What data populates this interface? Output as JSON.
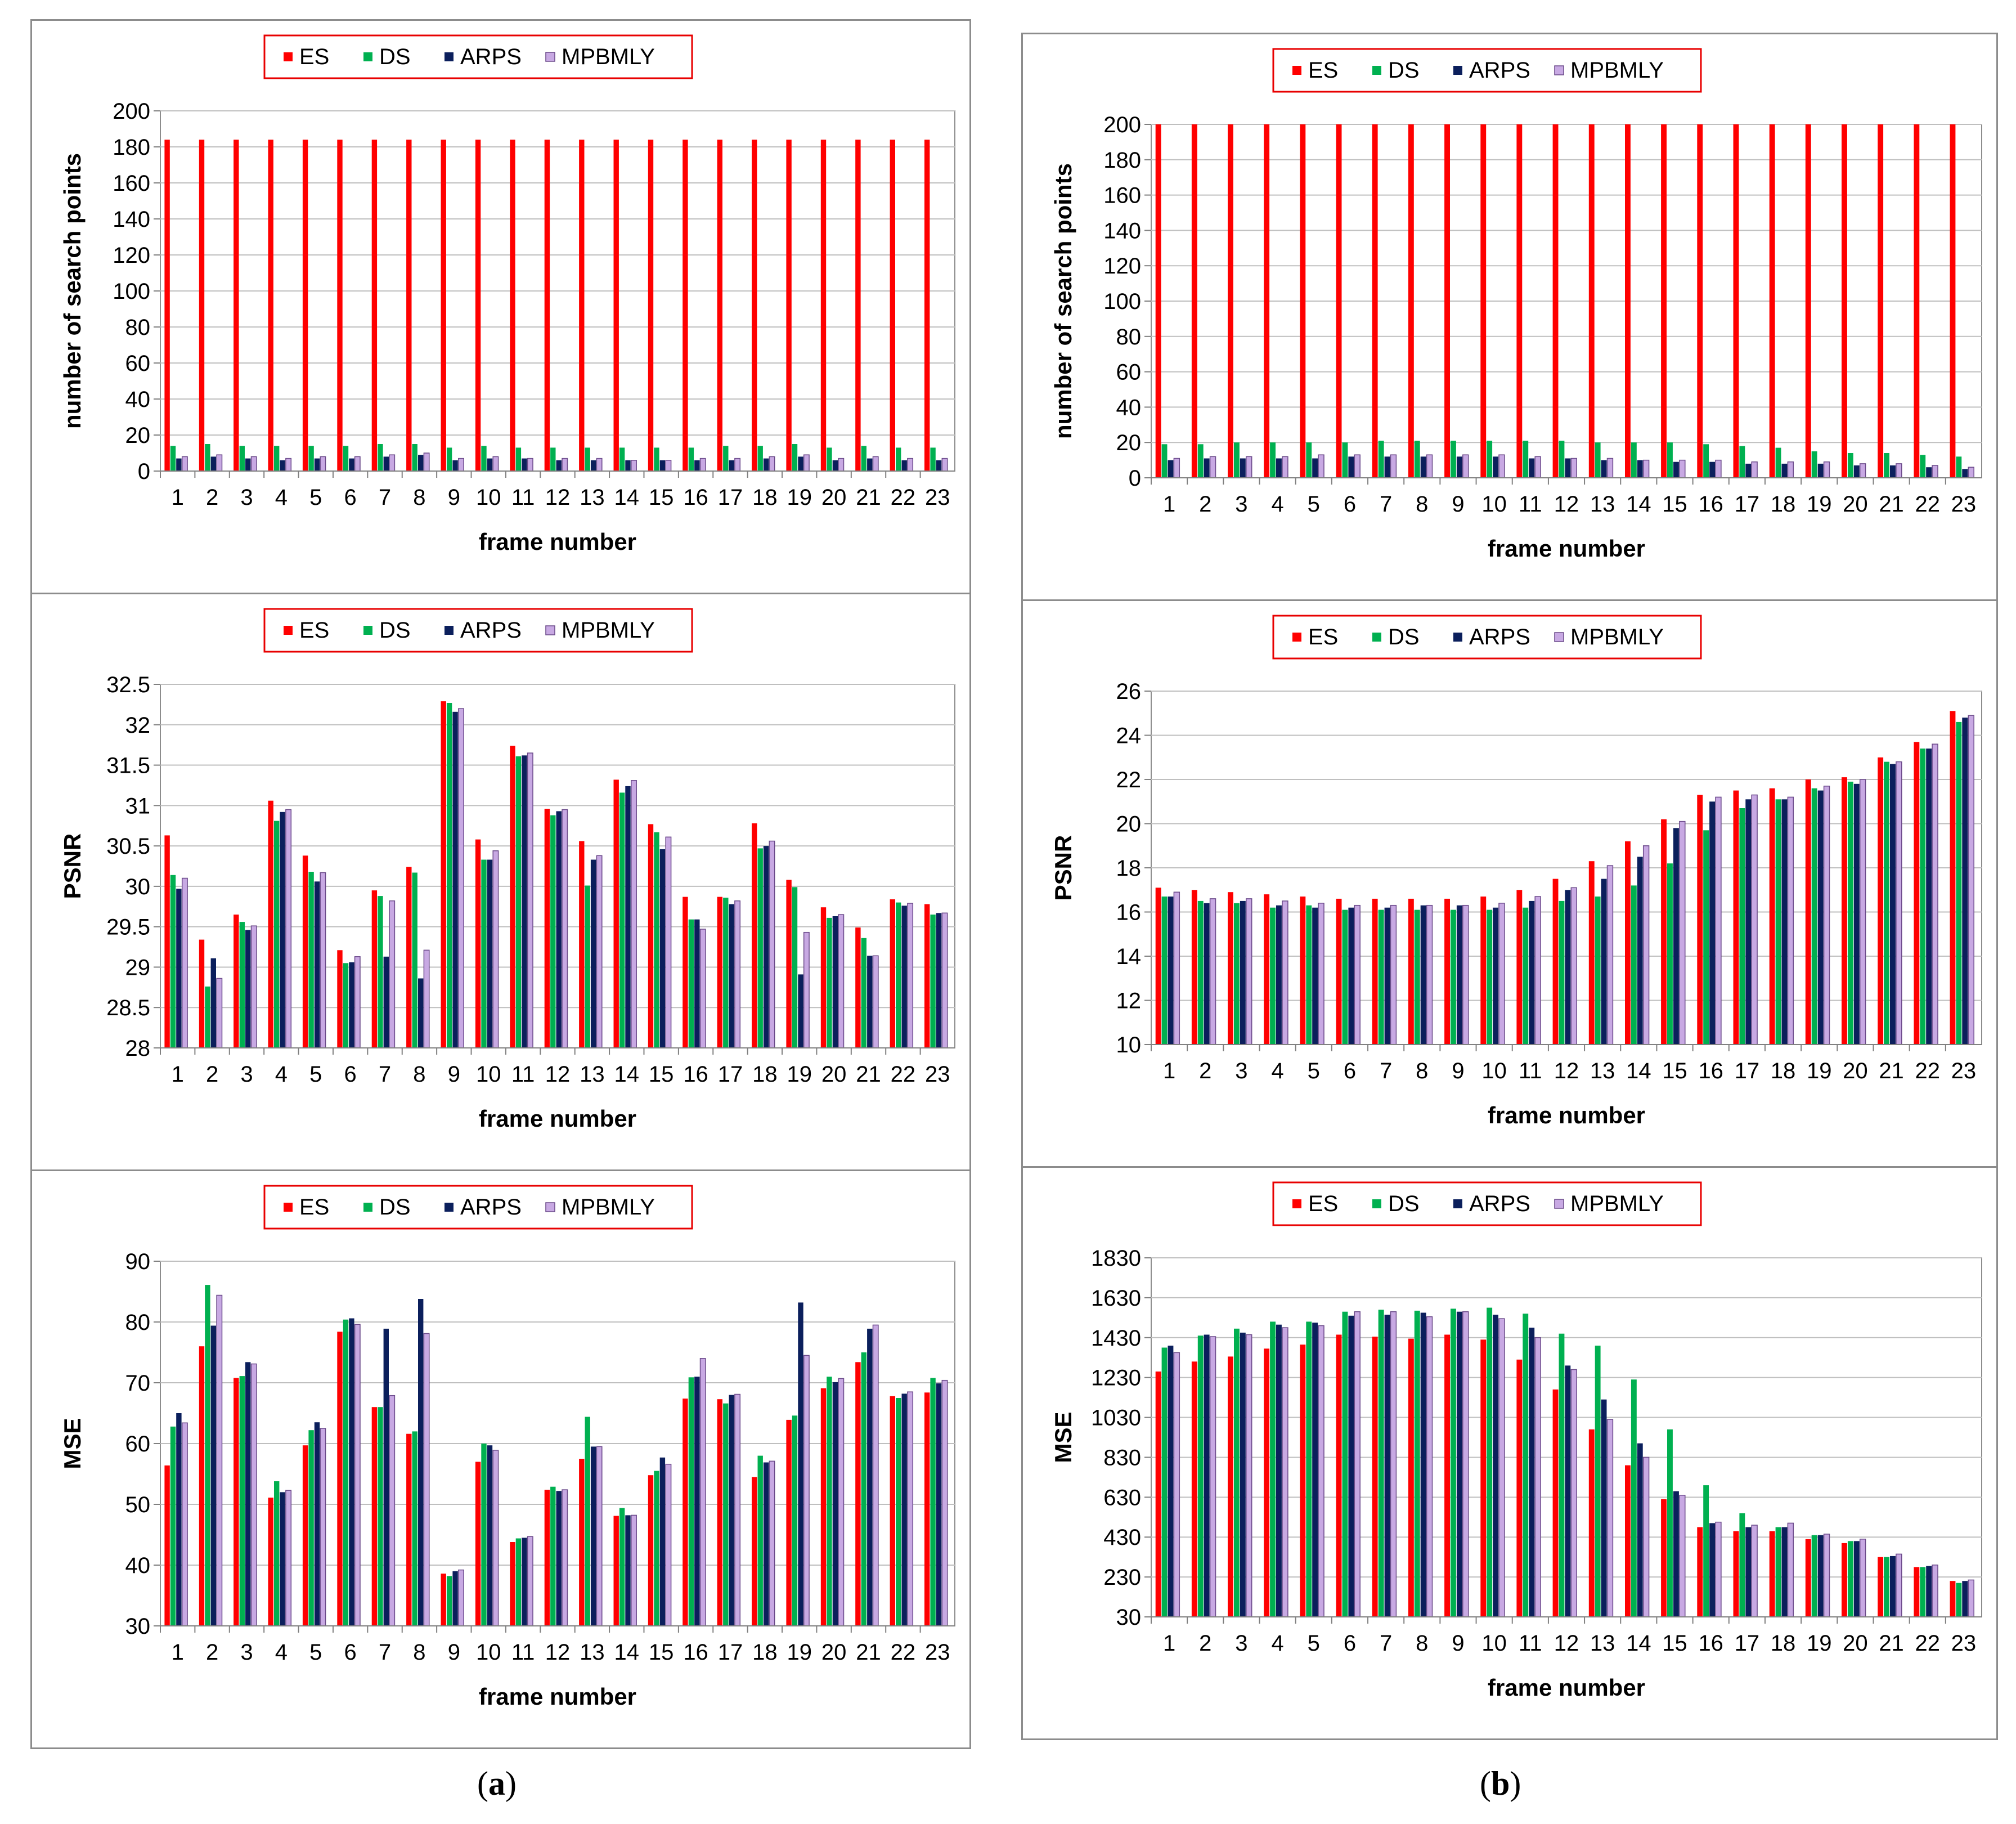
{
  "colors": {
    "ES": "#ff0000",
    "DS": "#00b050",
    "ARPS": "#0b1f5c",
    "MPBMLY": "#c8a9e3",
    "legend_border": "#e80000",
    "grid": "#bfbfbf"
  },
  "captions": {
    "a": {
      "open": "(",
      "letter": "a",
      "close": ")"
    },
    "b": {
      "open": "(",
      "letter": "b",
      "close": ")"
    }
  },
  "chart_data": [
    {
      "type": "bar",
      "column": "a",
      "title": "",
      "ylabel": "number of search points",
      "xlabel": "frame number",
      "ylim": [
        0,
        200
      ],
      "yticks": [
        "0",
        "20",
        "40",
        "60",
        "80",
        "100",
        "120",
        "140",
        "160",
        "180",
        "200"
      ],
      "categories": [
        "1",
        "2",
        "3",
        "4",
        "5",
        "6",
        "7",
        "8",
        "9",
        "10",
        "11",
        "12",
        "13",
        "14",
        "15",
        "16",
        "17",
        "18",
        "19",
        "20",
        "21",
        "22",
        "23"
      ],
      "legend": [
        "ES",
        "DS",
        "ARPS",
        "MPBMLY"
      ],
      "series": [
        {
          "name": "ES",
          "values": [
            184,
            184,
            184,
            184,
            184,
            184,
            184,
            184,
            184,
            184,
            184,
            184,
            184,
            184,
            184,
            184,
            184,
            184,
            184,
            184,
            184,
            184,
            184
          ]
        },
        {
          "name": "DS",
          "values": [
            14,
            15,
            14,
            14,
            14,
            14,
            15,
            15,
            13,
            14,
            13,
            13,
            13,
            13,
            13,
            13,
            14,
            14,
            15,
            13,
            14,
            13,
            13
          ]
        },
        {
          "name": "ARPS",
          "values": [
            7,
            8,
            7,
            6,
            7,
            7,
            8,
            9,
            6,
            7,
            7,
            6,
            6,
            6,
            6,
            6,
            6,
            7,
            8,
            6,
            7,
            6,
            6
          ]
        },
        {
          "name": "MPBMLY",
          "values": [
            8,
            9,
            8,
            7,
            8,
            8,
            9,
            10,
            7,
            8,
            7,
            7,
            7,
            6,
            6,
            7,
            7,
            8,
            9,
            7,
            8,
            7,
            7
          ]
        }
      ]
    },
    {
      "type": "bar",
      "column": "b",
      "title": "",
      "ylabel": "number of search points",
      "xlabel": "frame number",
      "ylim": [
        0,
        200
      ],
      "yticks": [
        "0",
        "20",
        "40",
        "60",
        "80",
        "100",
        "120",
        "140",
        "160",
        "180",
        "200"
      ],
      "categories": [
        "1",
        "2",
        "3",
        "4",
        "5",
        "6",
        "7",
        "8",
        "9",
        "10",
        "11",
        "12",
        "13",
        "14",
        "15",
        "16",
        "17",
        "18",
        "19",
        "20",
        "21",
        "22",
        "23"
      ],
      "legend": [
        "ES",
        "DS",
        "ARPS",
        "MPBMLY"
      ],
      "series": [
        {
          "name": "ES",
          "values": [
            200,
            200,
            200,
            200,
            200,
            200,
            200,
            200,
            200,
            200,
            200,
            200,
            200,
            200,
            200,
            200,
            200,
            200,
            200,
            200,
            200,
            200,
            200
          ]
        },
        {
          "name": "DS",
          "values": [
            19,
            19,
            20,
            20,
            20,
            20,
            21,
            21,
            21,
            21,
            21,
            21,
            20,
            20,
            20,
            19,
            18,
            17,
            15,
            14,
            14,
            13,
            12
          ]
        },
        {
          "name": "ARPS",
          "values": [
            10,
            11,
            11,
            11,
            11,
            12,
            12,
            12,
            12,
            12,
            11,
            11,
            10,
            10,
            9,
            9,
            8,
            8,
            8,
            7,
            7,
            6,
            5
          ]
        },
        {
          "name": "MPBMLY",
          "values": [
            11,
            12,
            12,
            12,
            13,
            13,
            13,
            13,
            13,
            13,
            12,
            11,
            11,
            10,
            10,
            10,
            9,
            9,
            9,
            8,
            8,
            7,
            6
          ]
        }
      ]
    },
    {
      "type": "bar",
      "column": "a",
      "title": "",
      "ylabel": "PSNR",
      "xlabel": "frame number",
      "ylim": [
        28,
        32.5
      ],
      "yticks": [
        "28",
        "28.5",
        "29",
        "29.5",
        "30",
        "30.5",
        "31",
        "31.5",
        "32",
        "32.5"
      ],
      "categories": [
        "1",
        "2",
        "3",
        "4",
        "5",
        "6",
        "7",
        "8",
        "9",
        "10",
        "11",
        "12",
        "13",
        "14",
        "15",
        "16",
        "17",
        "18",
        "19",
        "20",
        "21",
        "22",
        "23"
      ],
      "legend": [
        "ES",
        "DS",
        "ARPS",
        "MPBMLY"
      ],
      "series": [
        {
          "name": "ES",
          "values": [
            30.63,
            29.34,
            29.65,
            31.06,
            30.38,
            29.21,
            29.95,
            30.24,
            32.29,
            30.58,
            31.74,
            30.96,
            30.56,
            31.32,
            30.77,
            29.87,
            29.87,
            30.78,
            30.08,
            29.74,
            29.49,
            29.84,
            29.78
          ]
        },
        {
          "name": "DS",
          "values": [
            30.14,
            28.76,
            29.56,
            30.81,
            30.18,
            29.05,
            29.88,
            30.17,
            32.27,
            30.33,
            31.61,
            30.88,
            30.01,
            31.16,
            30.67,
            29.59,
            29.86,
            30.47,
            29.99,
            29.61,
            29.36,
            29.8,
            29.65
          ]
        },
        {
          "name": "ARPS",
          "values": [
            29.97,
            29.11,
            29.46,
            30.92,
            30.06,
            29.06,
            29.13,
            28.86,
            32.16,
            30.33,
            31.62,
            30.93,
            30.33,
            31.24,
            30.46,
            29.59,
            29.78,
            30.5,
            28.91,
            29.63,
            29.14,
            29.76,
            29.67
          ]
        },
        {
          "name": "MPBMLY",
          "values": [
            30.1,
            28.86,
            29.51,
            30.95,
            30.17,
            29.13,
            29.82,
            29.21,
            32.2,
            30.44,
            31.65,
            30.95,
            30.38,
            31.31,
            30.61,
            29.47,
            29.82,
            30.56,
            29.43,
            29.65,
            29.14,
            29.79,
            29.67
          ]
        }
      ]
    },
    {
      "type": "bar",
      "column": "b",
      "title": "",
      "ylabel": "PSNR",
      "xlabel": "frame number",
      "ylim": [
        10,
        26
      ],
      "yticks": [
        "10",
        "12",
        "14",
        "16",
        "18",
        "20",
        "22",
        "24",
        "26"
      ],
      "categories": [
        "1",
        "2",
        "3",
        "4",
        "5",
        "6",
        "7",
        "8",
        "9",
        "10",
        "11",
        "12",
        "13",
        "14",
        "15",
        "16",
        "17",
        "18",
        "19",
        "20",
        "21",
        "22",
        "23"
      ],
      "legend": [
        "ES",
        "DS",
        "ARPS",
        "MPBMLY"
      ],
      "series": [
        {
          "name": "ES",
          "values": [
            17.1,
            17.0,
            16.9,
            16.8,
            16.7,
            16.6,
            16.6,
            16.6,
            16.6,
            16.7,
            17.0,
            17.5,
            18.3,
            19.2,
            20.2,
            21.3,
            21.5,
            21.6,
            22.0,
            22.1,
            23.0,
            23.7,
            25.1
          ]
        },
        {
          "name": "DS",
          "values": [
            16.7,
            16.5,
            16.4,
            16.2,
            16.3,
            16.1,
            16.1,
            16.1,
            16.1,
            16.1,
            16.2,
            16.5,
            16.7,
            17.2,
            18.2,
            19.7,
            20.7,
            21.1,
            21.6,
            21.9,
            22.8,
            23.4,
            24.6
          ]
        },
        {
          "name": "ARPS",
          "values": [
            16.7,
            16.4,
            16.5,
            16.3,
            16.2,
            16.2,
            16.2,
            16.3,
            16.3,
            16.2,
            16.5,
            17.0,
            17.5,
            18.5,
            19.8,
            21.0,
            21.1,
            21.1,
            21.5,
            21.8,
            22.7,
            23.4,
            24.8
          ]
        },
        {
          "name": "MPBMLY",
          "values": [
            16.9,
            16.6,
            16.6,
            16.5,
            16.4,
            16.3,
            16.3,
            16.3,
            16.3,
            16.4,
            16.7,
            17.1,
            18.1,
            19.0,
            20.1,
            21.2,
            21.3,
            21.2,
            21.7,
            22.0,
            22.8,
            23.6,
            24.9
          ]
        }
      ]
    },
    {
      "type": "bar",
      "column": "a",
      "title": "",
      "ylabel": "MSE",
      "xlabel": "frame number",
      "ylim": [
        30,
        90
      ],
      "yticks": [
        "30",
        "40",
        "50",
        "60",
        "70",
        "80",
        "90"
      ],
      "categories": [
        "1",
        "2",
        "3",
        "4",
        "5",
        "6",
        "7",
        "8",
        "9",
        "10",
        "11",
        "12",
        "13",
        "14",
        "15",
        "16",
        "17",
        "18",
        "19",
        "20",
        "21",
        "22",
        "23"
      ],
      "legend": [
        "ES",
        "DS",
        "ARPS",
        "MPBMLY"
      ],
      "series": [
        {
          "name": "ES",
          "values": [
            56.4,
            76.0,
            70.8,
            51.1,
            59.7,
            78.4,
            66.0,
            61.6,
            38.6,
            57.0,
            43.8,
            52.4,
            57.5,
            48.1,
            54.8,
            67.4,
            67.3,
            54.5,
            63.9,
            69.1,
            73.4,
            67.8,
            68.4
          ]
        },
        {
          "name": "DS",
          "values": [
            62.8,
            86.1,
            71.1,
            53.8,
            62.2,
            80.4,
            66.0,
            62.0,
            38.2,
            60.0,
            44.4,
            52.9,
            64.4,
            49.4,
            55.5,
            70.9,
            66.6,
            58.0,
            64.6,
            71.0,
            75.0,
            67.5,
            70.8
          ]
        },
        {
          "name": "ARPS",
          "values": [
            65.0,
            79.4,
            73.4,
            52.0,
            63.5,
            80.6,
            78.9,
            83.8,
            39.0,
            59.7,
            44.5,
            52.2,
            59.5,
            48.2,
            57.7,
            71.0,
            68.0,
            56.9,
            83.2,
            70.1,
            78.9,
            68.2,
            69.9
          ]
        },
        {
          "name": "MPBMLY",
          "values": [
            63.4,
            84.4,
            73.1,
            52.3,
            62.5,
            79.6,
            67.9,
            78.1,
            39.2,
            58.9,
            44.7,
            52.4,
            59.5,
            48.2,
            56.6,
            74.0,
            68.1,
            57.1,
            74.5,
            70.7,
            79.5,
            68.5,
            70.4
          ]
        }
      ]
    },
    {
      "type": "bar",
      "column": "b",
      "title": "",
      "ylabel": "MSE",
      "xlabel": "frame number",
      "ylim": [
        30,
        1830
      ],
      "yticks": [
        "30",
        "230",
        "430",
        "630",
        "830",
        "1030",
        "1230",
        "1430",
        "1630",
        "1830"
      ],
      "categories": [
        "1",
        "2",
        "3",
        "4",
        "5",
        "6",
        "7",
        "8",
        "9",
        "10",
        "11",
        "12",
        "13",
        "14",
        "15",
        "16",
        "17",
        "18",
        "19",
        "20",
        "21",
        "22",
        "23"
      ],
      "legend": [
        "ES",
        "DS",
        "ARPS",
        "MPBMLY"
      ],
      "series": [
        {
          "name": "ES",
          "values": [
            1260,
            1310,
            1335,
            1375,
            1395,
            1445,
            1435,
            1425,
            1445,
            1420,
            1320,
            1170,
            970,
            790,
            620,
            480,
            460,
            460,
            420,
            400,
            330,
            280,
            210
          ]
        },
        {
          "name": "DS",
          "values": [
            1380,
            1440,
            1475,
            1510,
            1510,
            1560,
            1570,
            1565,
            1575,
            1580,
            1550,
            1450,
            1390,
            1220,
            970,
            690,
            550,
            480,
            440,
            410,
            330,
            280,
            200
          ]
        },
        {
          "name": "ARPS",
          "values": [
            1390,
            1445,
            1455,
            1495,
            1505,
            1540,
            1545,
            1555,
            1560,
            1545,
            1480,
            1290,
            1120,
            900,
            660,
            500,
            480,
            480,
            440,
            410,
            335,
            285,
            210
          ]
        },
        {
          "name": "MPBMLY",
          "values": [
            1355,
            1435,
            1445,
            1480,
            1490,
            1560,
            1560,
            1535,
            1560,
            1525,
            1430,
            1270,
            1020,
            830,
            640,
            505,
            490,
            500,
            445,
            420,
            345,
            290,
            215
          ]
        }
      ]
    }
  ]
}
